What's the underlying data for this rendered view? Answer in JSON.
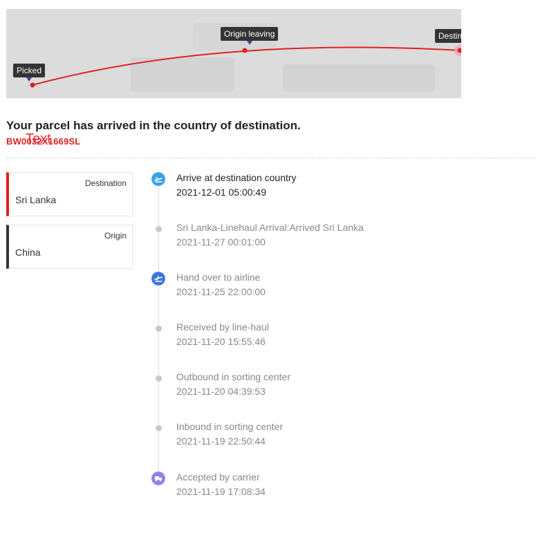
{
  "map": {
    "markers": [
      {
        "label": "Picked"
      },
      {
        "label": "Origin leaving"
      },
      {
        "label": "Destination arrived"
      }
    ],
    "route_color": "#e02020"
  },
  "headline": "Your parcel has arrived in the country of destination.",
  "tracking_number": "BW0032X1669SL",
  "overlay_text": "Text",
  "cards": {
    "destination": {
      "caption": "Destination",
      "value": "Sri Lanka"
    },
    "origin": {
      "caption": "Origin",
      "value": "China"
    }
  },
  "events": [
    {
      "title": "Arrive at destination country",
      "time": "2021-12-01 05:00:49",
      "icon": "plane-landing-icon"
    },
    {
      "title": "Sri Lanka-Linehaul Arrival:Arrived Sri Lanka",
      "time": "2021-11-27 00:01:00",
      "icon": "dot-icon"
    },
    {
      "title": "Hand over to airline",
      "time": "2021-11-25 22:00:00",
      "icon": "plane-takeoff-icon"
    },
    {
      "title": "Received by line-haul",
      "time": "2021-11-20 15:55:46",
      "icon": "dot-icon"
    },
    {
      "title": "Outbound in sorting center",
      "time": "2021-11-20 04:39:53",
      "icon": "dot-icon"
    },
    {
      "title": "Inbound in sorting center",
      "time": "2021-11-19 22:50:44",
      "icon": "dot-icon"
    },
    {
      "title": "Accepted by carrier",
      "time": "2021-11-19 17:08:34",
      "icon": "truck-icon"
    }
  ],
  "colors": {
    "accent_red": "#e02020",
    "landing_icon": "#3ba0e6",
    "takeoff_icon": "#3d74e0",
    "carrier_icon": "#8e86e6"
  }
}
